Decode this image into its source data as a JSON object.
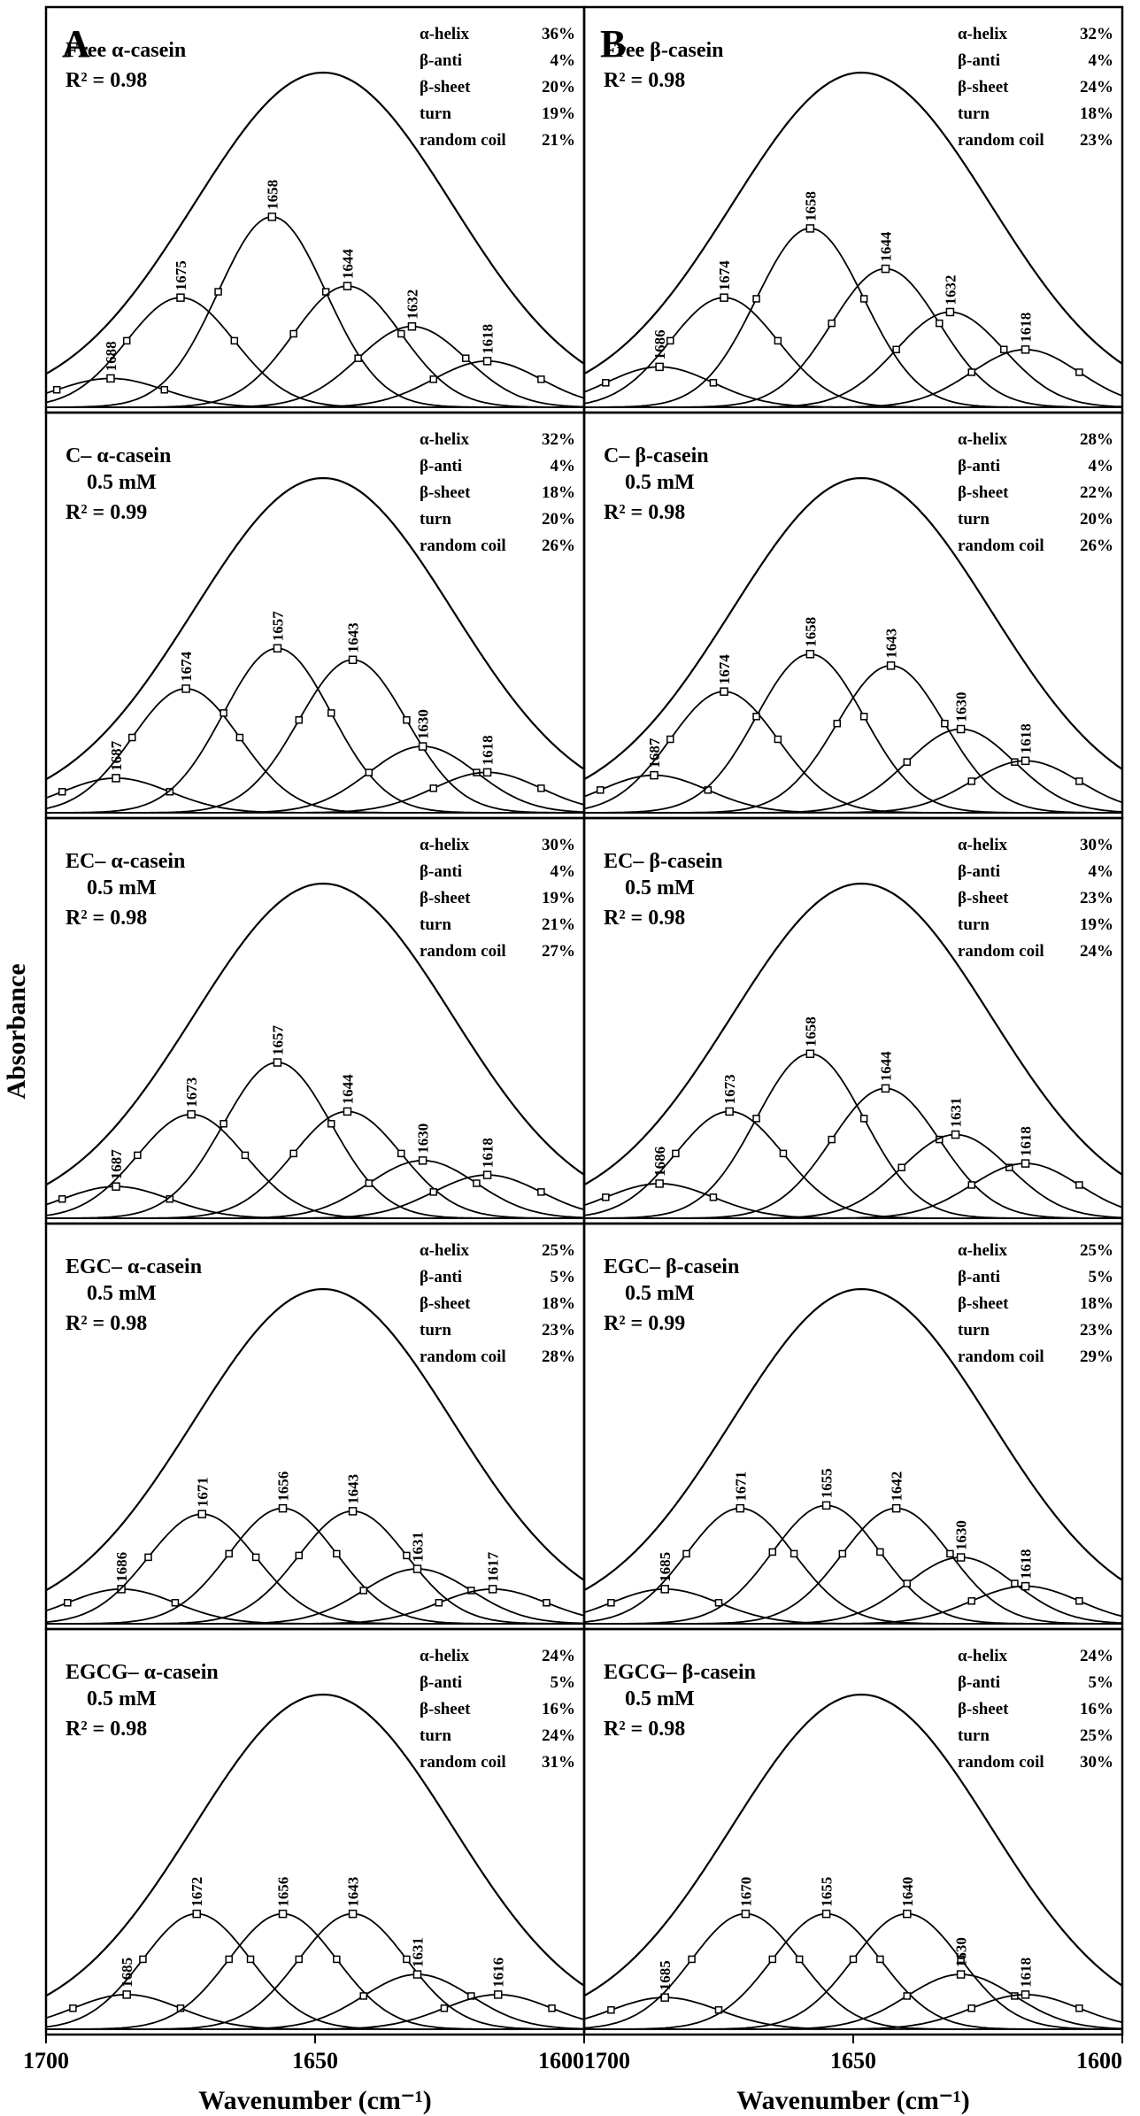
{
  "figure": {
    "ylabel": "Absorbance",
    "xlabel": "Wavenumber (cm⁻¹)",
    "column_letters": [
      "A",
      "B"
    ],
    "x_ticks": [
      1700,
      1650,
      1600
    ],
    "structure_labels": [
      "α-helix",
      "β-anti",
      "β-sheet",
      "turn",
      "random coil"
    ]
  },
  "chart_data": [
    {
      "type": "line",
      "column": "A",
      "row": 0,
      "title_lines": [
        "Free α-casein"
      ],
      "r2": "R² = 0.98",
      "xlim": [
        1700,
        1600
      ],
      "x_ticks": [
        1700,
        1650,
        1600
      ],
      "xlabel": "Wavenumber (cm⁻¹)",
      "ylabel": "Absorbance",
      "components": [
        {
          "center": 1688,
          "height": 0.1
        },
        {
          "center": 1675,
          "height": 0.38
        },
        {
          "center": 1658,
          "height": 0.66
        },
        {
          "center": 1644,
          "height": 0.42
        },
        {
          "center": 1632,
          "height": 0.28
        },
        {
          "center": 1618,
          "height": 0.16
        }
      ],
      "secondary_structure": [
        {
          "label": "α-helix",
          "value": "36%"
        },
        {
          "label": "β-anti",
          "value": "4%"
        },
        {
          "label": "β-sheet",
          "value": "20%"
        },
        {
          "label": "turn",
          "value": "19%"
        },
        {
          "label": "random coil",
          "value": "21%"
        }
      ]
    },
    {
      "type": "line",
      "column": "B",
      "row": 0,
      "title_lines": [
        "Free β-casein"
      ],
      "r2": "R² = 0.98",
      "xlim": [
        1700,
        1600
      ],
      "x_ticks": [
        1700,
        1650,
        1600
      ],
      "xlabel": "Wavenumber (cm⁻¹)",
      "ylabel": "Absorbance",
      "components": [
        {
          "center": 1686,
          "height": 0.14
        },
        {
          "center": 1674,
          "height": 0.38
        },
        {
          "center": 1658,
          "height": 0.62
        },
        {
          "center": 1644,
          "height": 0.48
        },
        {
          "center": 1632,
          "height": 0.33
        },
        {
          "center": 1618,
          "height": 0.2
        }
      ],
      "secondary_structure": [
        {
          "label": "α-helix",
          "value": "32%"
        },
        {
          "label": "β-anti",
          "value": "4%"
        },
        {
          "label": "β-sheet",
          "value": "24%"
        },
        {
          "label": "turn",
          "value": "18%"
        },
        {
          "label": "random coil",
          "value": "23%"
        }
      ]
    },
    {
      "type": "line",
      "column": "A",
      "row": 1,
      "title_lines": [
        "C– α-casein",
        "0.5 mM"
      ],
      "r2": "R² = 0.99",
      "xlim": [
        1700,
        1600
      ],
      "x_ticks": [
        1700,
        1650,
        1600
      ],
      "xlabel": "Wavenumber (cm⁻¹)",
      "ylabel": "Absorbance",
      "components": [
        {
          "center": 1687,
          "height": 0.12
        },
        {
          "center": 1674,
          "height": 0.43
        },
        {
          "center": 1657,
          "height": 0.57
        },
        {
          "center": 1643,
          "height": 0.53
        },
        {
          "center": 1630,
          "height": 0.23
        },
        {
          "center": 1618,
          "height": 0.14
        }
      ],
      "secondary_structure": [
        {
          "label": "α-helix",
          "value": "32%"
        },
        {
          "label": "β-anti",
          "value": "4%"
        },
        {
          "label": "β-sheet",
          "value": "18%"
        },
        {
          "label": "turn",
          "value": "20%"
        },
        {
          "label": "random coil",
          "value": "26%"
        }
      ]
    },
    {
      "type": "line",
      "column": "B",
      "row": 1,
      "title_lines": [
        "C– β-casein",
        "0.5 mM"
      ],
      "r2": "R² = 0.98",
      "xlim": [
        1700,
        1600
      ],
      "x_ticks": [
        1700,
        1650,
        1600
      ],
      "xlabel": "Wavenumber (cm⁻¹)",
      "ylabel": "Absorbance",
      "components": [
        {
          "center": 1687,
          "height": 0.13
        },
        {
          "center": 1674,
          "height": 0.42
        },
        {
          "center": 1658,
          "height": 0.55
        },
        {
          "center": 1643,
          "height": 0.51
        },
        {
          "center": 1630,
          "height": 0.29
        },
        {
          "center": 1618,
          "height": 0.18
        }
      ],
      "secondary_structure": [
        {
          "label": "α-helix",
          "value": "28%"
        },
        {
          "label": "β-anti",
          "value": "4%"
        },
        {
          "label": "β-sheet",
          "value": "22%"
        },
        {
          "label": "turn",
          "value": "20%"
        },
        {
          "label": "random coil",
          "value": "26%"
        }
      ]
    },
    {
      "type": "line",
      "column": "A",
      "row": 2,
      "title_lines": [
        "EC– α-casein",
        "0.5 mM"
      ],
      "r2": "R² = 0.98",
      "xlim": [
        1700,
        1600
      ],
      "x_ticks": [
        1700,
        1650,
        1600
      ],
      "xlabel": "Wavenumber (cm⁻¹)",
      "ylabel": "Absorbance",
      "components": [
        {
          "center": 1687,
          "height": 0.11
        },
        {
          "center": 1673,
          "height": 0.36
        },
        {
          "center": 1657,
          "height": 0.54
        },
        {
          "center": 1644,
          "height": 0.37
        },
        {
          "center": 1630,
          "height": 0.2
        },
        {
          "center": 1618,
          "height": 0.15
        }
      ],
      "secondary_structure": [
        {
          "label": "α-helix",
          "value": "30%"
        },
        {
          "label": "β-anti",
          "value": "4%"
        },
        {
          "label": "β-sheet",
          "value": "19%"
        },
        {
          "label": "turn",
          "value": "21%"
        },
        {
          "label": "random coil",
          "value": "27%"
        }
      ]
    },
    {
      "type": "line",
      "column": "B",
      "row": 2,
      "title_lines": [
        "EC– β-casein",
        "0.5 mM"
      ],
      "r2": "R² = 0.98",
      "xlim": [
        1700,
        1600
      ],
      "x_ticks": [
        1700,
        1650,
        1600
      ],
      "xlabel": "Wavenumber (cm⁻¹)",
      "ylabel": "Absorbance",
      "components": [
        {
          "center": 1686,
          "height": 0.12
        },
        {
          "center": 1673,
          "height": 0.37
        },
        {
          "center": 1658,
          "height": 0.57
        },
        {
          "center": 1644,
          "height": 0.45
        },
        {
          "center": 1631,
          "height": 0.29
        },
        {
          "center": 1618,
          "height": 0.19
        }
      ],
      "secondary_structure": [
        {
          "label": "α-helix",
          "value": "30%"
        },
        {
          "label": "β-anti",
          "value": "4%"
        },
        {
          "label": "β-sheet",
          "value": "23%"
        },
        {
          "label": "turn",
          "value": "19%"
        },
        {
          "label": "random coil",
          "value": "24%"
        }
      ]
    },
    {
      "type": "line",
      "column": "A",
      "row": 3,
      "title_lines": [
        "EGC– α-casein",
        "0.5 mM"
      ],
      "r2": "R² = 0.98",
      "xlim": [
        1700,
        1600
      ],
      "x_ticks": [
        1700,
        1650,
        1600
      ],
      "xlabel": "Wavenumber (cm⁻¹)",
      "ylabel": "Absorbance",
      "components": [
        {
          "center": 1686,
          "height": 0.12
        },
        {
          "center": 1671,
          "height": 0.38
        },
        {
          "center": 1656,
          "height": 0.4
        },
        {
          "center": 1643,
          "height": 0.39
        },
        {
          "center": 1631,
          "height": 0.19
        },
        {
          "center": 1617,
          "height": 0.12
        }
      ],
      "secondary_structure": [
        {
          "label": "α-helix",
          "value": "25%"
        },
        {
          "label": "β-anti",
          "value": "5%"
        },
        {
          "label": "β-sheet",
          "value": "18%"
        },
        {
          "label": "turn",
          "value": "23%"
        },
        {
          "label": "random coil",
          "value": "28%"
        }
      ]
    },
    {
      "type": "line",
      "column": "B",
      "row": 3,
      "title_lines": [
        "EGC– β-casein",
        "0.5 mM"
      ],
      "r2": "R² = 0.99",
      "xlim": [
        1700,
        1600
      ],
      "x_ticks": [
        1700,
        1650,
        1600
      ],
      "xlabel": "Wavenumber (cm⁻¹)",
      "ylabel": "Absorbance",
      "components": [
        {
          "center": 1685,
          "height": 0.12
        },
        {
          "center": 1671,
          "height": 0.4
        },
        {
          "center": 1655,
          "height": 0.41
        },
        {
          "center": 1642,
          "height": 0.4
        },
        {
          "center": 1630,
          "height": 0.23
        },
        {
          "center": 1618,
          "height": 0.13
        }
      ],
      "secondary_structure": [
        {
          "label": "α-helix",
          "value": "25%"
        },
        {
          "label": "β-anti",
          "value": "5%"
        },
        {
          "label": "β-sheet",
          "value": "18%"
        },
        {
          "label": "turn",
          "value": "23%"
        },
        {
          "label": "random coil",
          "value": "29%"
        }
      ]
    },
    {
      "type": "line",
      "column": "A",
      "row": 4,
      "title_lines": [
        "EGCG– α-casein",
        "0.5 mM"
      ],
      "r2": "R² = 0.98",
      "xlim": [
        1700,
        1600
      ],
      "x_ticks": [
        1700,
        1650,
        1600
      ],
      "xlabel": "Wavenumber (cm⁻¹)",
      "ylabel": "Absorbance",
      "components": [
        {
          "center": 1685,
          "height": 0.12
        },
        {
          "center": 1672,
          "height": 0.4
        },
        {
          "center": 1656,
          "height": 0.4
        },
        {
          "center": 1643,
          "height": 0.4
        },
        {
          "center": 1631,
          "height": 0.19
        },
        {
          "center": 1616,
          "height": 0.12
        }
      ],
      "secondary_structure": [
        {
          "label": "α-helix",
          "value": "24%"
        },
        {
          "label": "β-anti",
          "value": "5%"
        },
        {
          "label": "β-sheet",
          "value": "16%"
        },
        {
          "label": "turn",
          "value": "24%"
        },
        {
          "label": "random coil",
          "value": "31%"
        }
      ]
    },
    {
      "type": "line",
      "column": "B",
      "row": 4,
      "title_lines": [
        "EGCG– β-casein",
        "0.5 mM"
      ],
      "r2": "R² = 0.98",
      "xlim": [
        1700,
        1600
      ],
      "x_ticks": [
        1700,
        1650,
        1600
      ],
      "xlabel": "Wavenumber (cm⁻¹)",
      "ylabel": "Absorbance",
      "components": [
        {
          "center": 1685,
          "height": 0.11
        },
        {
          "center": 1670,
          "height": 0.4
        },
        {
          "center": 1655,
          "height": 0.4
        },
        {
          "center": 1640,
          "height": 0.4
        },
        {
          "center": 1630,
          "height": 0.19
        },
        {
          "center": 1618,
          "height": 0.12
        }
      ],
      "secondary_structure": [
        {
          "label": "α-helix",
          "value": "24%"
        },
        {
          "label": "β-anti",
          "value": "5%"
        },
        {
          "label": "β-sheet",
          "value": "16%"
        },
        {
          "label": "turn",
          "value": "25%"
        },
        {
          "label": "random coil",
          "value": "30%"
        }
      ]
    }
  ]
}
